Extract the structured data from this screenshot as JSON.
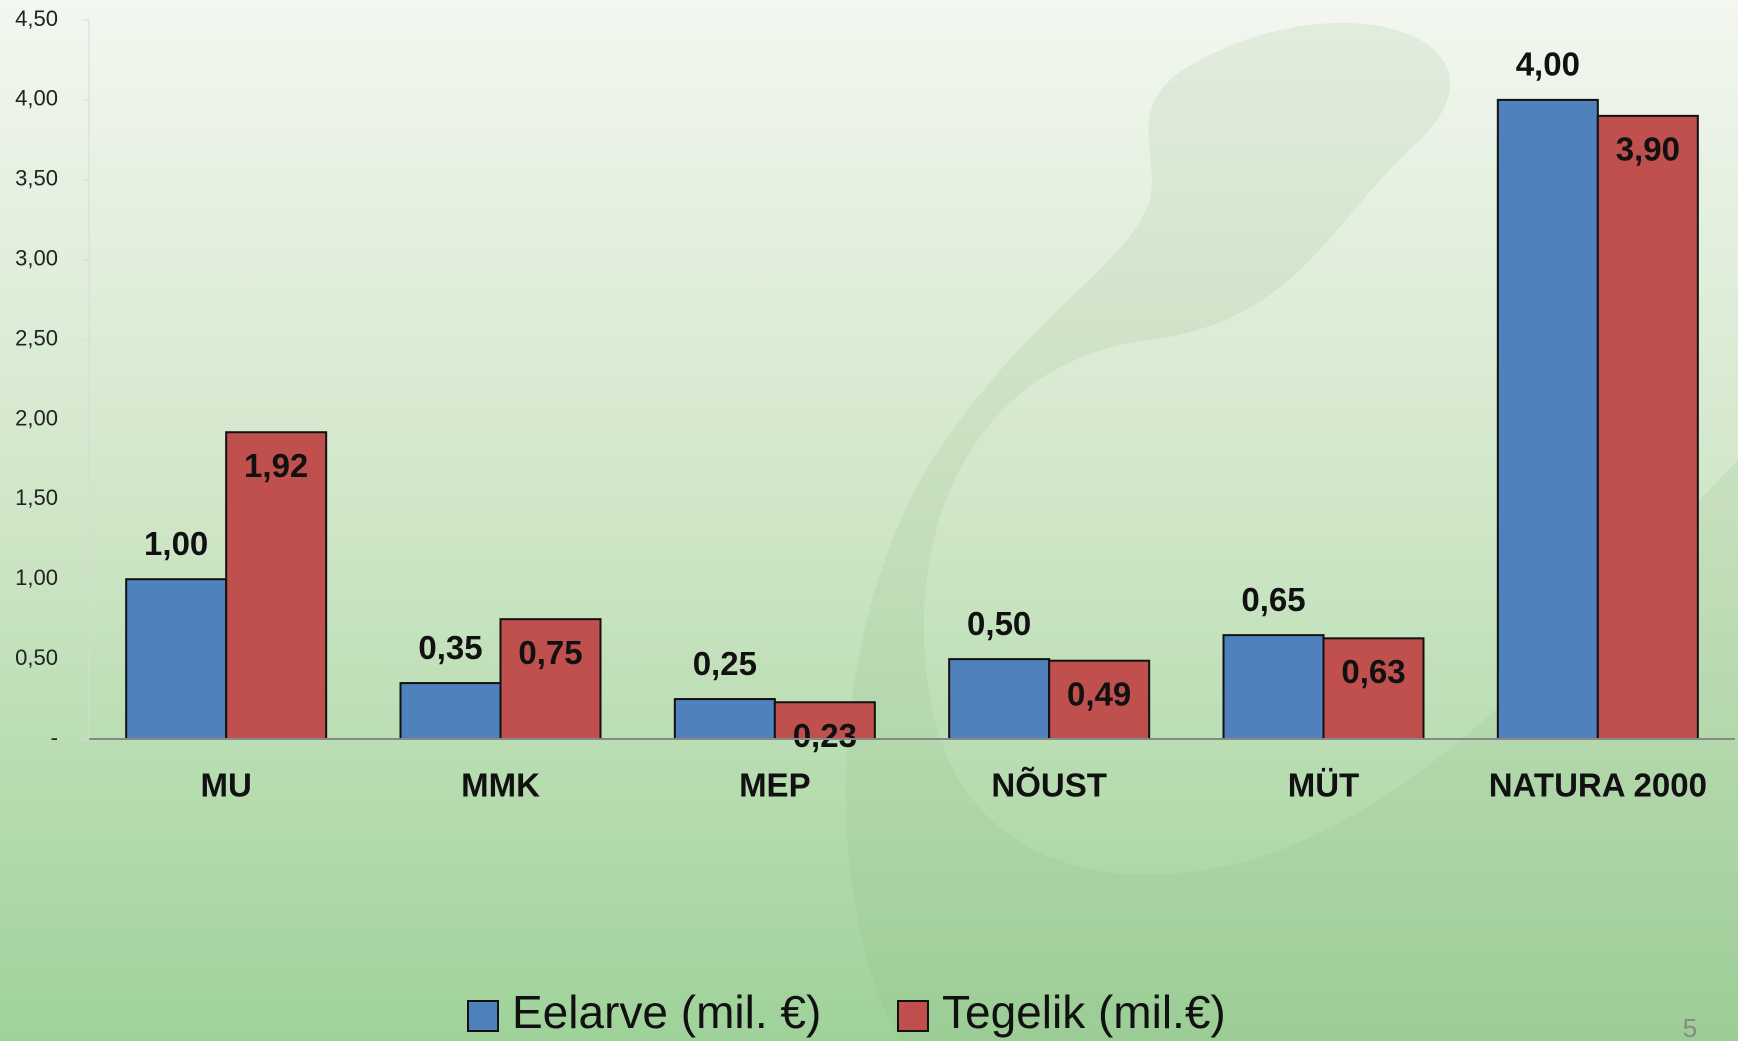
{
  "chart_data": {
    "type": "bar",
    "categories": [
      "MU",
      "MMK",
      "MEP",
      "NÕUST",
      "MÜT",
      "NATURA 2000"
    ],
    "series": [
      {
        "name": "Eelarve (mil. €)",
        "color": "#4f81bd",
        "values": [
          1.0,
          0.35,
          0.25,
          0.5,
          0.65,
          4.0
        ],
        "value_labels": [
          "1,00",
          "0,35",
          "0,25",
          "0,50",
          "0,65",
          "4,00"
        ]
      },
      {
        "name": "Tegelik (mil.€)",
        "color": "#c0504d",
        "values": [
          1.92,
          0.75,
          0.23,
          0.49,
          0.63,
          3.9
        ],
        "value_labels": [
          "1,92",
          "0,75",
          "0,23",
          "0,49",
          "0,63",
          "3,90"
        ]
      }
    ],
    "ylim": [
      0,
      4.5
    ],
    "yticks": [
      {
        "value": 0,
        "label": "-"
      },
      {
        "value": 0.5,
        "label": "0,50"
      },
      {
        "value": 1,
        "label": "1,00"
      },
      {
        "value": 1.5,
        "label": "1,50"
      },
      {
        "value": 2,
        "label": "2,00"
      },
      {
        "value": 2.5,
        "label": "2,50"
      },
      {
        "value": 3,
        "label": "3,00"
      },
      {
        "value": 3.5,
        "label": "3,50"
      },
      {
        "value": 4,
        "label": "4,00"
      },
      {
        "value": 4.5,
        "label": "4,50"
      }
    ],
    "legend": "bottom",
    "slide_number": "5"
  }
}
